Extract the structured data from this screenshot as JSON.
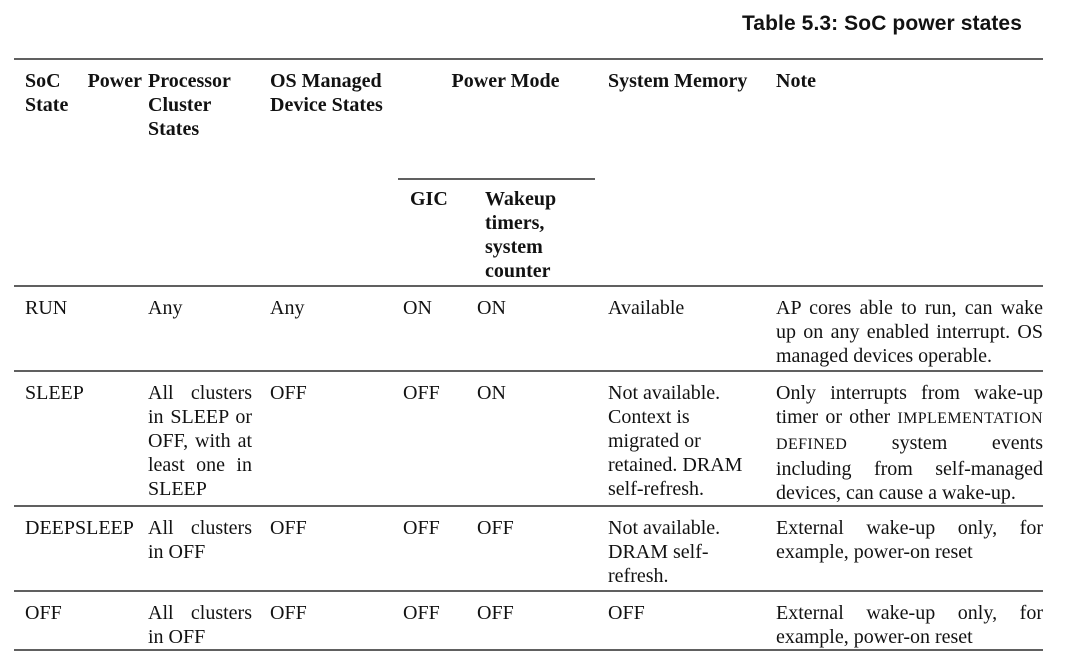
{
  "title": "Table 5.3: SoC power states",
  "colors": {
    "rule": "#606060",
    "text": "#121212",
    "background": "#ffffff"
  },
  "table": {
    "headers": {
      "soc_power_state": "SoC Power State",
      "processor_cluster_states": "Processor Cluster States",
      "os_managed_device_states": "OS Managed Device States",
      "power_mode": "Power Mode",
      "gic": "GIC",
      "wakeup_timers": "Wakeup timers, system counter",
      "system_memory": "System Memory",
      "note": "Note"
    },
    "rows": [
      {
        "state": "RUN",
        "cluster": "Any",
        "os_devices": "Any",
        "gic": "ON",
        "wakeup": "ON",
        "memory": "Available",
        "note": "AP cores able to run, can wake up on any enabled interrupt. OS managed devices operable."
      },
      {
        "state": "SLEEP",
        "cluster": "All clusters in SLEEP or OFF, with at least one in SLEEP",
        "os_devices": "OFF",
        "gic": "OFF",
        "wakeup": "ON",
        "memory": "Not available. Context is migrated or retained. DRAM self-refresh.",
        "note_parts": [
          {
            "t": "Only interrupts from wake-up timer or other "
          },
          {
            "t": "IMPLEMENTATION DEFINED",
            "c": "smallcaps"
          },
          {
            "t": " system events including from self-managed devices, can cause a wake-up."
          }
        ]
      },
      {
        "state": "DEEPSLEEP",
        "cluster": "All clusters in OFF",
        "os_devices": "OFF",
        "gic": "OFF",
        "wakeup": "OFF",
        "memory": "Not available. DRAM self-refresh.",
        "note": "External wake-up only, for example, power-on reset"
      },
      {
        "state": "OFF",
        "cluster": "All clusters in OFF",
        "os_devices": "OFF",
        "gic": "OFF",
        "wakeup": "OFF",
        "memory": "OFF",
        "note": "External wake-up only, for example, power-on reset"
      }
    ]
  }
}
